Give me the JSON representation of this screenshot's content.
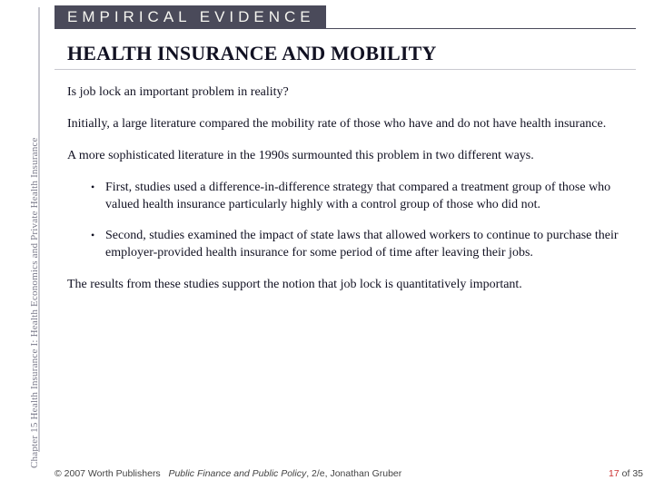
{
  "vertical_label": "Chapter 15  Health Insurance I: Health Economics and Private Health Insurance",
  "badge": "EMPIRICAL EVIDENCE",
  "title": "HEALTH INSURANCE AND MOBILITY",
  "paragraphs": {
    "p1": "Is job lock an important problem in reality?",
    "p2": "Initially, a large literature compared the mobility rate of those who have and do not have health insurance.",
    "p3": "A more sophisticated literature in the 1990s surmounted this problem in two different ways.",
    "p4": "The results from these studies support the notion that job lock is quantitatively important."
  },
  "bullets": {
    "b1": "First, studies used a difference-in-difference strategy that compared a treatment group of those who valued health insurance particularly highly with a control group of those who did not.",
    "b2": "Second, studies examined the impact of state laws that allowed workers to continue to purchase their employer-provided health insurance for some period of time after leaving their jobs."
  },
  "footer": {
    "copyright": "© 2007 Worth Publishers",
    "book": "Public Finance and Public Policy",
    "edition": ", 2/e, Jonathan Gruber"
  },
  "page": {
    "current": "17",
    "sep": " of ",
    "total": "35"
  },
  "colors": {
    "badge_bg": "#4a4a5a",
    "badge_fg": "#f5f5f0",
    "divider": "#c9c9d0",
    "vlabel": "#7a7a8a",
    "page_accent": "#cc3333"
  }
}
